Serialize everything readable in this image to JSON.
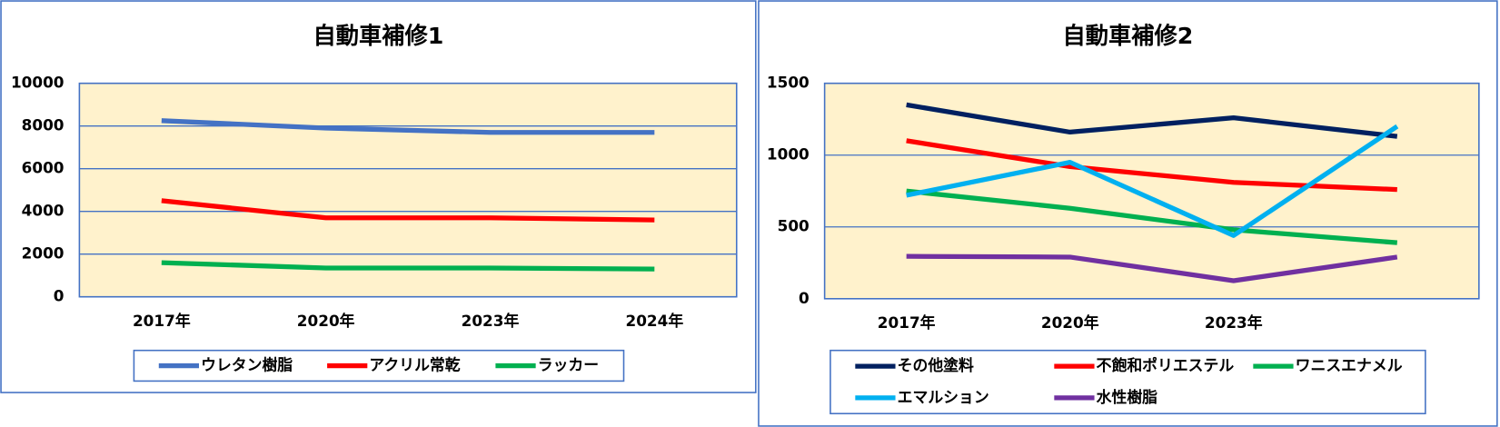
{
  "chart_data": [
    {
      "type": "line",
      "title": "自動車補修1",
      "categories": [
        "2017年",
        "2020年",
        "2023年",
        "2024年"
      ],
      "series": [
        {
          "name": "ウレタン樹脂",
          "color": "#4472c4",
          "values": [
            8250,
            7900,
            7700,
            7700
          ]
        },
        {
          "name": "アクリル常乾",
          "color": "#ff0000",
          "values": [
            4500,
            3700,
            3700,
            3600
          ]
        },
        {
          "name": "ラッカー",
          "color": "#00b050",
          "values": [
            1600,
            1350,
            1350,
            1300
          ]
        }
      ],
      "ylim": [
        0,
        10000
      ],
      "yticks": [
        0,
        2000,
        4000,
        6000,
        8000,
        10000
      ],
      "grid": true,
      "legend": "bottom"
    },
    {
      "type": "line",
      "title": "自動車補修2",
      "categories": [
        "2017年",
        "2020年",
        "2023年",
        null
      ],
      "series": [
        {
          "name": "その他塗料",
          "color": "#002060",
          "values": [
            1350,
            1160,
            1260,
            1130
          ]
        },
        {
          "name": "不飽和ポリエステル",
          "color": "#ff0000",
          "values": [
            1100,
            920,
            810,
            760
          ]
        },
        {
          "name": "ワニスエナメル",
          "color": "#00b050",
          "values": [
            750,
            630,
            480,
            390
          ]
        },
        {
          "name": "エマルション",
          "color": "#00b0f0",
          "values": [
            720,
            950,
            440,
            1200
          ]
        },
        {
          "name": "水性樹脂",
          "color": "#7030a0",
          "values": [
            295,
            290,
            125,
            290
          ]
        }
      ],
      "ylim": [
        0,
        1500
      ],
      "yticks": [
        0,
        500,
        1000,
        1500
      ],
      "grid": true,
      "legend": "bottom"
    }
  ]
}
